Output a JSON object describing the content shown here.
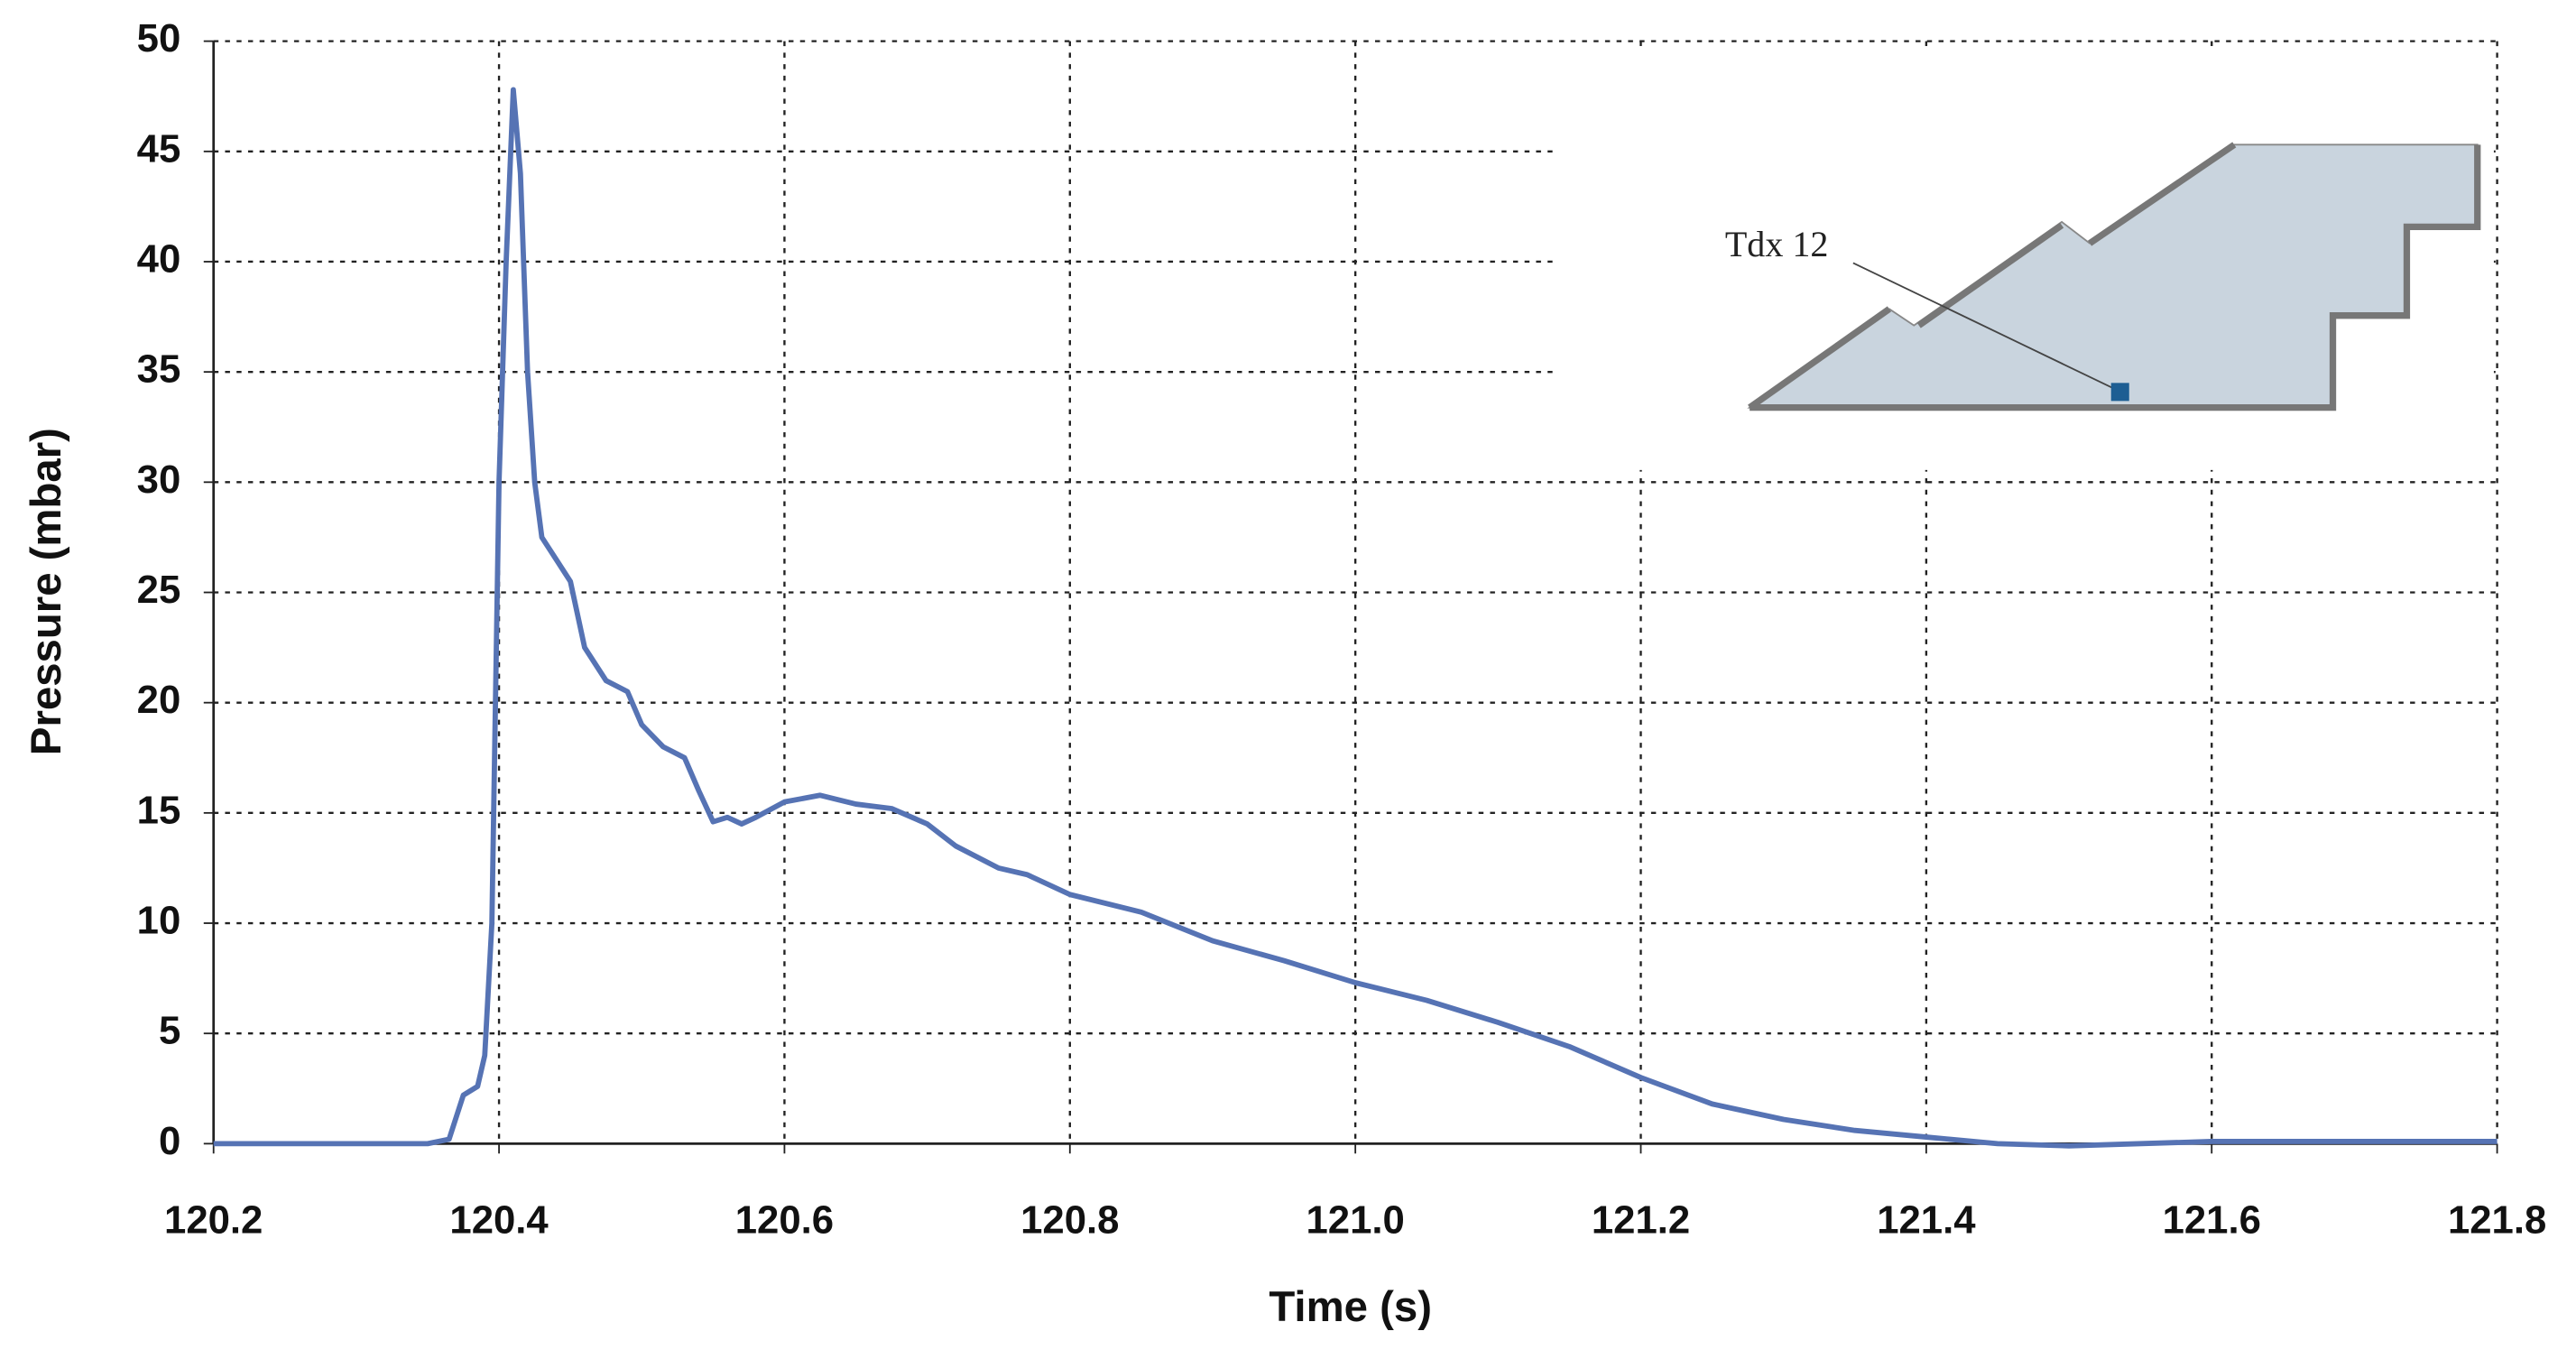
{
  "chart_data": {
    "type": "line",
    "xlabel": "Time (s)",
    "ylabel": "Pressure (mbar)",
    "annotation": "Tdx 12",
    "x": [
      120.2,
      120.35,
      120.365,
      120.375,
      120.385,
      120.39,
      120.395,
      120.4,
      120.405,
      120.41,
      120.415,
      120.42,
      120.425,
      120.43,
      120.44,
      120.45,
      120.46,
      120.475,
      120.49,
      120.5,
      120.515,
      120.53,
      120.54,
      120.55,
      120.56,
      120.57,
      120.58,
      120.6,
      120.625,
      120.65,
      120.675,
      120.7,
      120.72,
      120.75,
      120.77,
      120.8,
      120.85,
      120.9,
      120.95,
      121.0,
      121.05,
      121.1,
      121.15,
      121.2,
      121.25,
      121.3,
      121.35,
      121.4,
      121.45,
      121.5,
      121.6,
      121.7,
      121.8
    ],
    "series": [
      {
        "name": "Tdx 12",
        "color": "#5673b4",
        "values": [
          0,
          0,
          0.2,
          2.2,
          2.6,
          4,
          10,
          30,
          40,
          47.8,
          44,
          35,
          30,
          27.5,
          26.5,
          25.5,
          22.5,
          21,
          20.5,
          19,
          18,
          17.5,
          16,
          14.6,
          14.8,
          14.5,
          14.8,
          15.5,
          15.8,
          15.4,
          15.2,
          14.5,
          13.5,
          12.5,
          12.2,
          11.3,
          10.5,
          9.2,
          8.3,
          7.3,
          6.5,
          5.5,
          4.4,
          3.0,
          1.8,
          1.1,
          0.6,
          0.3,
          0,
          -0.1,
          0.1,
          0.1,
          0.1
        ]
      }
    ],
    "xlim": [
      120.2,
      121.8
    ],
    "xticks": [
      120.2,
      120.4,
      120.6,
      120.8,
      {
        "value": 121,
        "label": "121.0"
      },
      121.2,
      121.4,
      121.6,
      121.8
    ],
    "ylim": [
      0,
      50
    ],
    "yticks": [
      0,
      5,
      10,
      15,
      20,
      25,
      30,
      35,
      40,
      45,
      50
    ],
    "grid": true
  }
}
